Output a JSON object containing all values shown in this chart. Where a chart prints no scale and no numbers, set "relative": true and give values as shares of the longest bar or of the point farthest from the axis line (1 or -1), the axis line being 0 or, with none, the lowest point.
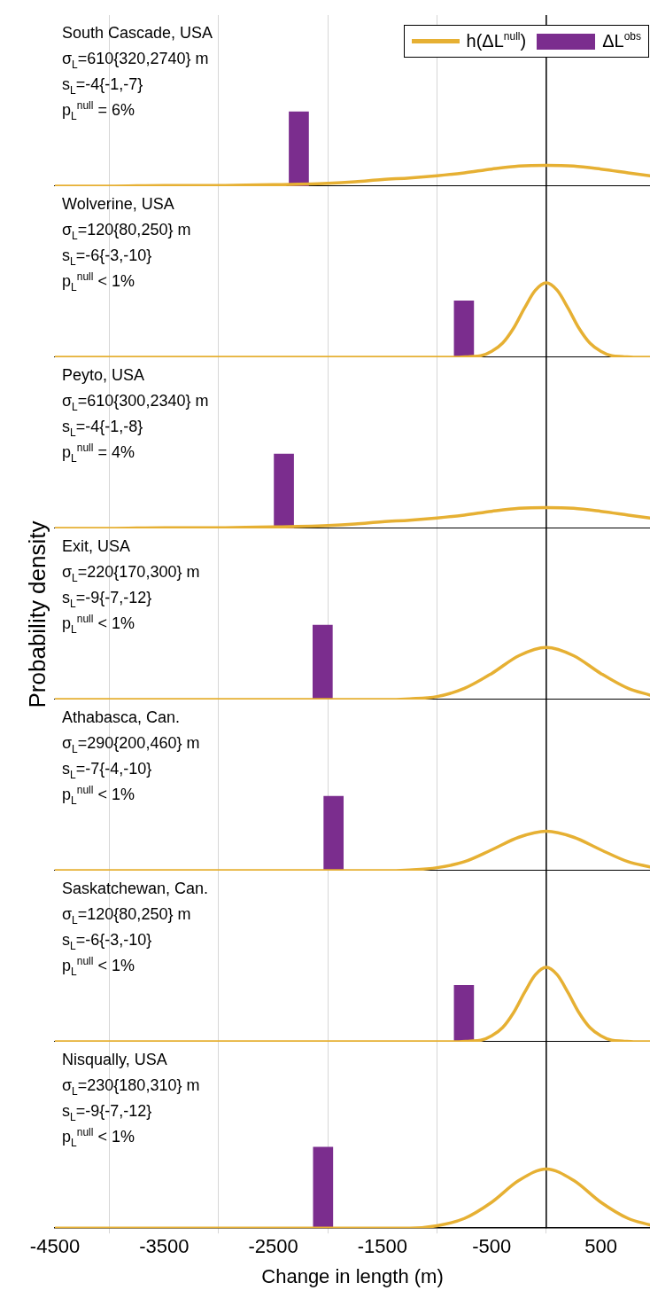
{
  "chart_data": [
    {
      "type": "line",
      "title": "South Cascade, USA",
      "annotations": [
        "σ$_{L}$=610{320,2740} m",
        "s$_{L}$=-4{-1,-7}",
        "p$_{L}$$^{null}$ = 6%"
      ],
      "relative": true,
      "xlim": [
        -4500,
        950
      ],
      "xticks": [
        -4500,
        -3500,
        -2500,
        -1500,
        -500,
        500
      ],
      "grid": "x",
      "tick_labels": false,
      "legend": "top right",
      "ref_lines": [
        {
          "axis": "x",
          "value": 0,
          "color": "#000000"
        }
      ],
      "series": [
        {
          "name": "h(ΔL$^{null}$)",
          "color": "#e6b033",
          "x": [
            -4500,
            -4000,
            -3500,
            -3000,
            -2500,
            -2000,
            -1750,
            -1500,
            -1250,
            -1000,
            -750,
            -500,
            -250,
            0,
            250,
            500,
            750,
            950
          ],
          "values": [
            0,
            0,
            0.01,
            0.01,
            0.02,
            0.04,
            0.06,
            0.09,
            0.11,
            0.14,
            0.18,
            0.23,
            0.27,
            0.28,
            0.27,
            0.23,
            0.18,
            0.14
          ]
        },
        {
          "name": "ΔL$^{obs}$",
          "type": "bar",
          "color": "#7b2d8e",
          "x": [
            -2266
          ],
          "values": [
            1
          ]
        }
      ]
    },
    {
      "type": "line",
      "title": "Wolverine, USA",
      "annotations": [
        "σ$_{L}$=120{80,250} m",
        "s$_{L}$=-6{-3,-10}",
        "p$_{L}$$^{null}$ < 1%"
      ],
      "relative": true,
      "xlim": [
        -4500,
        950
      ],
      "xticks": [
        -4500,
        -3500,
        -2500,
        -1500,
        -500,
        500
      ],
      "grid": "x",
      "tick_labels": false,
      "ref_lines": [
        {
          "axis": "x",
          "value": 0,
          "color": "#000000"
        }
      ],
      "series": [
        {
          "color": "#e6b033",
          "x": [
            -4500,
            -2000,
            -1000,
            -800,
            -700,
            -600,
            -500,
            -400,
            -300,
            -200,
            -100,
            0,
            100,
            200,
            300,
            400,
            500,
            600,
            700,
            800,
            950
          ],
          "values": [
            0,
            0,
            0,
            0,
            0.01,
            0.02,
            0.08,
            0.19,
            0.39,
            0.66,
            0.9,
            1,
            0.9,
            0.66,
            0.39,
            0.19,
            0.08,
            0.02,
            0.01,
            0,
            0
          ]
        },
        {
          "type": "bar",
          "color": "#7b2d8e",
          "x": [
            -754
          ],
          "values": [
            0.76
          ]
        }
      ]
    },
    {
      "type": "line",
      "title": "Peyto, USA",
      "annotations": [
        "σ$_{L}$=610{300,2340} m",
        "s$_{L}$=-4{-1,-8}",
        "p$_{L}$$^{null}$ = 4%"
      ],
      "relative": true,
      "xlim": [
        -4500,
        950
      ],
      "xticks": [
        -4500,
        -3500,
        -2500,
        -1500,
        -500,
        500
      ],
      "grid": "x",
      "tick_labels": false,
      "ref_lines": [
        {
          "axis": "x",
          "value": 0,
          "color": "#000000"
        }
      ],
      "series": [
        {
          "color": "#e6b033",
          "x": [
            -4500,
            -4000,
            -3500,
            -3000,
            -2500,
            -2000,
            -1750,
            -1500,
            -1250,
            -1000,
            -750,
            -500,
            -250,
            0,
            250,
            500,
            750,
            950
          ],
          "values": [
            0,
            0,
            0.01,
            0.01,
            0.02,
            0.04,
            0.06,
            0.09,
            0.11,
            0.14,
            0.18,
            0.23,
            0.27,
            0.28,
            0.27,
            0.23,
            0.18,
            0.14
          ]
        },
        {
          "type": "bar",
          "color": "#7b2d8e",
          "x": [
            -2403
          ],
          "values": [
            1
          ]
        }
      ]
    },
    {
      "type": "line",
      "title": "Exit, USA",
      "ylabel": "Probability density",
      "annotations": [
        "σ$_{L}$=220{170,300} m",
        "s$_{L}$=-9{-7,-12}",
        "p$_{L}$$^{null}$ < 1%"
      ],
      "relative": true,
      "xlim": [
        -4500,
        950
      ],
      "xticks": [
        -4500,
        -3500,
        -2500,
        -1500,
        -500,
        500
      ],
      "grid": "x",
      "tick_labels": false,
      "ref_lines": [
        {
          "axis": "x",
          "value": 0,
          "color": "#000000"
        }
      ],
      "series": [
        {
          "color": "#e6b033",
          "x": [
            -4500,
            -2000,
            -1500,
            -1250,
            -1000,
            -750,
            -500,
            -250,
            0,
            250,
            500,
            750,
            950
          ],
          "values": [
            0,
            0,
            0,
            0.01,
            0.04,
            0.15,
            0.35,
            0.59,
            0.7,
            0.59,
            0.35,
            0.15,
            0.06
          ]
        },
        {
          "type": "bar",
          "color": "#7b2d8e",
          "x": [
            -2048
          ],
          "values": [
            1
          ]
        }
      ]
    },
    {
      "type": "line",
      "title": "Athabasca, Can.",
      "annotations": [
        "σ$_{L}$=290{200,460} m",
        "s$_{L}$=-7{-4,-10}",
        "p$_{L}$$^{null}$ < 1%"
      ],
      "relative": true,
      "xlim": [
        -4500,
        950
      ],
      "xticks": [
        -4500,
        -3500,
        -2500,
        -1500,
        -500,
        500
      ],
      "grid": "x",
      "tick_labels": false,
      "ref_lines": [
        {
          "axis": "x",
          "value": 0,
          "color": "#000000"
        }
      ],
      "series": [
        {
          "color": "#e6b033",
          "x": [
            -4500,
            -2000,
            -1500,
            -1250,
            -1000,
            -750,
            -500,
            -250,
            0,
            250,
            500,
            750,
            950
          ],
          "values": [
            0,
            0,
            0,
            0.01,
            0.04,
            0.12,
            0.28,
            0.45,
            0.53,
            0.45,
            0.28,
            0.12,
            0.05
          ]
        },
        {
          "type": "bar",
          "color": "#7b2d8e",
          "x": [
            -1948
          ],
          "values": [
            1
          ]
        }
      ]
    },
    {
      "type": "line",
      "title": "Saskatchewan, Can.",
      "annotations": [
        "σ$_{L}$=120{80,250} m",
        "s$_{L}$=-6{-3,-10}",
        "p$_{L}$$^{null}$ < 1%"
      ],
      "relative": true,
      "xlim": [
        -4500,
        950
      ],
      "xticks": [
        -4500,
        -3500,
        -2500,
        -1500,
        -500,
        500
      ],
      "grid": "x",
      "tick_labels": false,
      "ref_lines": [
        {
          "axis": "x",
          "value": 0,
          "color": "#000000"
        }
      ],
      "series": [
        {
          "color": "#e6b033",
          "x": [
            -4500,
            -2000,
            -1000,
            -800,
            -700,
            -600,
            -500,
            -400,
            -300,
            -200,
            -100,
            0,
            100,
            200,
            300,
            400,
            500,
            600,
            700,
            800,
            950
          ],
          "values": [
            0,
            0,
            0,
            0,
            0.01,
            0.02,
            0.08,
            0.19,
            0.39,
            0.66,
            0.9,
            1,
            0.9,
            0.66,
            0.39,
            0.19,
            0.08,
            0.02,
            0.01,
            0,
            0
          ]
        },
        {
          "type": "bar",
          "color": "#7b2d8e",
          "x": [
            -754
          ],
          "values": [
            0.76
          ]
        }
      ]
    },
    {
      "type": "line",
      "title": "Nisqually, USA",
      "xlabel": "Change in length (m)",
      "annotations": [
        "σ$_{L}$=230{180,310} m",
        "s$_{L}$=-9{-7,-12}",
        "p$_{L}$$^{null}$ < 1%"
      ],
      "relative": true,
      "xlim": [
        -4500,
        950
      ],
      "xticks": [
        -4500,
        -3500,
        -2500,
        -1500,
        -500,
        500
      ],
      "grid": "x",
      "tick_labels": "x",
      "ref_lines": [
        {
          "axis": "x",
          "value": 0,
          "color": "#000000"
        }
      ],
      "series": [
        {
          "color": "#e6b033",
          "x": [
            -4500,
            -2000,
            -1500,
            -1250,
            -1000,
            -750,
            -500,
            -250,
            0,
            250,
            500,
            750,
            950
          ],
          "values": [
            0,
            0,
            0,
            0,
            0.03,
            0.12,
            0.32,
            0.59,
            0.73,
            0.59,
            0.32,
            0.12,
            0.04
          ]
        },
        {
          "type": "bar",
          "color": "#7b2d8e",
          "x": [
            -2044
          ],
          "values": [
            1
          ]
        }
      ]
    }
  ]
}
